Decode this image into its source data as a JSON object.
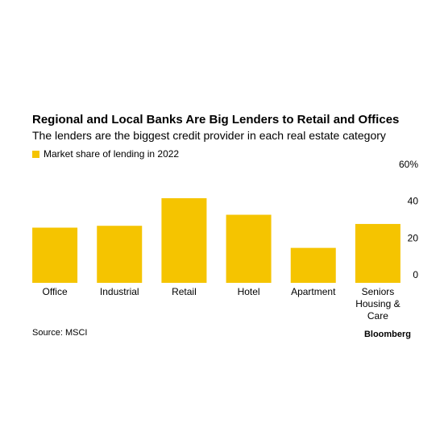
{
  "chart_data": {
    "type": "bar",
    "title": "Regional and Local Banks Are Big Lenders to Retail and Offices",
    "subtitle": "The lenders are the biggest credit provider in each real estate category",
    "legend": "Market share of lending in 2022",
    "categories": [
      "Office",
      "Industrial",
      "Retail",
      "Hotel",
      "Apartment",
      "Seniors Housing & Care"
    ],
    "values": [
      30,
      31,
      46,
      37,
      19,
      32
    ],
    "color": "#f5c400",
    "ylim": [
      0,
      60
    ],
    "yticks": [
      0,
      20,
      40,
      {
        "value": 60,
        "label": "60%"
      }
    ],
    "source": "Source: MSCI",
    "brand": "Bloomberg"
  }
}
